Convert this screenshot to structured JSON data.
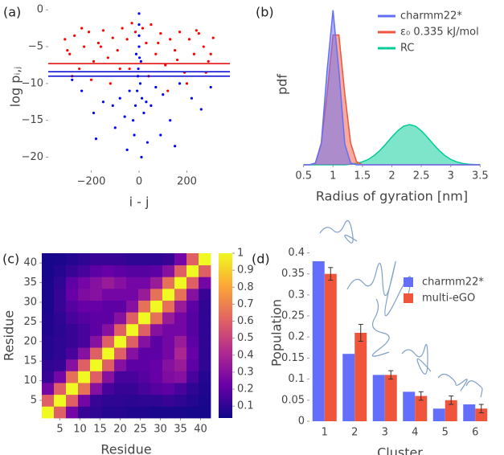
{
  "chart_data": [
    {
      "type": "scatter",
      "panel_label": "(a)",
      "x_label": "i - j",
      "y_label": "log pᵢ,ⱼ",
      "xlim": [
        -380,
        380
      ],
      "ylim": [
        -21.8,
        0.9
      ],
      "xticks": [
        {
          "value": -200,
          "label": "−200"
        },
        0,
        200
      ],
      "yticks": [
        0,
        {
          "value": -5,
          "label": "−5"
        },
        {
          "value": -10,
          "label": "−10"
        },
        {
          "value": -15,
          "label": "−15"
        },
        {
          "value": -20,
          "label": "−20"
        }
      ],
      "series": [
        {
          "color": "#ff0000",
          "x": [
            -310,
            -290,
            -270,
            -250,
            -230,
            -210,
            -190,
            -170,
            -150,
            -130,
            -110,
            -90,
            -70,
            -50,
            -30,
            -15,
            15,
            30,
            50,
            70,
            90,
            110,
            130,
            150,
            170,
            190,
            210,
            230,
            250,
            270,
            290,
            310,
            -280,
            -200,
            -120,
            -40,
            40,
            120,
            200,
            280,
            -240,
            -160,
            -80,
            80,
            160,
            240,
            -300,
            300
          ],
          "y": [
            -4,
            -6,
            -3.5,
            -8,
            -5,
            -3,
            -7,
            -4.5,
            -2.8,
            -6.5,
            -3.8,
            -5.5,
            -2.5,
            -4,
            -1.8,
            -3,
            -2.5,
            -4.5,
            -2,
            -6,
            -3.2,
            -7.5,
            -4,
            -5.5,
            -3,
            -8.5,
            -4,
            -6,
            -3.2,
            -5,
            -7,
            -3.8,
            -9,
            -9.5,
            -10,
            -8,
            -9,
            -11,
            -10,
            -8.5,
            -2.5,
            -5,
            -8,
            -4.5,
            -6.8,
            -2.8,
            -5.5,
            -6
          ]
        },
        {
          "color": "#0000ff",
          "x": [
            0,
            0,
            0,
            0,
            2,
            -3,
            5,
            -8,
            12,
            -15,
            20,
            -25,
            30,
            -40,
            50,
            -60,
            70,
            -80,
            100,
            -110,
            130,
            -150,
            170,
            -190,
            220,
            -240,
            260,
            -280,
            300,
            -20,
            35,
            -50,
            10,
            -100,
            90,
            150,
            -180,
            -5,
            8,
            -12
          ],
          "y": [
            -0.5,
            -2,
            -3.5,
            -5,
            -6.5,
            -8,
            -10,
            -11,
            -12,
            -13,
            -14,
            -15,
            -12.5,
            -11,
            -13,
            -14.5,
            -10.5,
            -12,
            -11.5,
            -13,
            -15,
            -12.5,
            -10,
            -14,
            -12,
            -11,
            -13.5,
            -9.5,
            -10.5,
            -17,
            -18,
            -19,
            -20,
            -16,
            -17,
            -18.5,
            -17.5,
            -9,
            -7,
            -6
          ]
        }
      ],
      "hlines": [
        {
          "y": -7.3,
          "color": "#e00000"
        },
        {
          "y": -8.4,
          "color": "#0000d0"
        },
        {
          "y": -9.0,
          "color": "#0000d0"
        }
      ]
    },
    {
      "type": "area",
      "panel_label": "(b)",
      "x_label": "Radius of gyration [nm]",
      "y_label": "pdf",
      "xlim": [
        0.45,
        3.55
      ],
      "ylim": [
        0,
        1.04
      ],
      "xticks": [
        0.5,
        1,
        1.5,
        2,
        2.5,
        3,
        3.5
      ],
      "legend": "upper right",
      "x": [
        0.5,
        0.6,
        0.7,
        0.8,
        0.9,
        1.0,
        1.1,
        1.2,
        1.3,
        1.4,
        1.5,
        1.6,
        1.7,
        1.8,
        1.9,
        2.0,
        2.1,
        2.2,
        2.3,
        2.4,
        2.5,
        2.6,
        2.7,
        2.8,
        2.9,
        3.0,
        3.1,
        3.2,
        3.3,
        3.4,
        3.5
      ],
      "series": [
        {
          "name": "charmm22*",
          "color": "#636efa",
          "values": [
            0,
            0,
            0.011,
            0.135,
            0.61,
            1,
            0.61,
            0.135,
            0.011,
            0,
            0,
            0,
            0,
            0,
            0,
            0,
            0,
            0,
            0,
            0,
            0,
            0,
            0,
            0,
            0,
            0,
            0,
            0,
            0,
            0,
            0
          ]
        },
        {
          "name": "ε₀ 0.335 kJ/mol",
          "color": "#ef553b",
          "values": [
            0,
            0,
            0.01,
            0.14,
            0.46,
            0.84,
            0.84,
            0.46,
            0.14,
            0.02,
            0,
            0,
            0,
            0,
            0,
            0,
            0,
            0,
            0,
            0,
            0,
            0,
            0,
            0,
            0,
            0,
            0,
            0,
            0,
            0,
            0
          ]
        },
        {
          "name": "RC",
          "color": "#00cc96",
          "values": [
            0,
            0,
            0,
            0,
            0,
            0,
            0,
            0,
            0.004,
            0.01,
            0.019,
            0.035,
            0.06,
            0.094,
            0.135,
            0.18,
            0.22,
            0.25,
            0.26,
            0.25,
            0.22,
            0.18,
            0.135,
            0.094,
            0.06,
            0.035,
            0.019,
            0.009,
            0.004,
            0.002,
            0
          ]
        }
      ]
    },
    {
      "type": "heatmap",
      "panel_label": "(c)",
      "x_label": "Residue",
      "y_label": "Residue",
      "xlim": [
        0.5,
        42.5
      ],
      "ylim": [
        0.5,
        42.5
      ],
      "xticks": [
        5,
        10,
        15,
        20,
        25,
        30,
        35,
        40
      ],
      "yticks": [
        5,
        10,
        15,
        20,
        25,
        30,
        35,
        40
      ],
      "x_edges": [
        0.5,
        3.5,
        6.5,
        9.5,
        12.5,
        15.5,
        18.5,
        21.5,
        24.5,
        27.5,
        30.5,
        33.5,
        36.5,
        39.5,
        42.5
      ],
      "y_edges": [
        0.5,
        3.5,
        6.5,
        9.5,
        12.5,
        15.5,
        18.5,
        21.5,
        24.5,
        27.5,
        30.5,
        33.5,
        36.5,
        39.5,
        42.5
      ],
      "zlim": [
        0.03,
        1
      ],
      "zticks": [
        0.1,
        0.2,
        0.3,
        0.4,
        0.5,
        0.6,
        0.7,
        0.8,
        0.9,
        1
      ],
      "colorscale": [
        "#0d0887",
        "#6a00a8",
        "#b12a90",
        "#e16462",
        "#fca636",
        "#f0f921"
      ],
      "z": [
        [
          1,
          0.6,
          0.25,
          0.12,
          0.1,
          0.08,
          0.08,
          0.07,
          0.07,
          0.06,
          0.06,
          0.06,
          0.05,
          0.05
        ],
        [
          0.6,
          1,
          0.6,
          0.25,
          0.12,
          0.1,
          0.1,
          0.09,
          0.1,
          0.1,
          0.12,
          0.1,
          0.08,
          0.06
        ],
        [
          0.25,
          0.6,
          1,
          0.65,
          0.3,
          0.15,
          0.12,
          0.12,
          0.15,
          0.18,
          0.2,
          0.15,
          0.1,
          0.07
        ],
        [
          0.12,
          0.25,
          0.65,
          1,
          0.6,
          0.3,
          0.15,
          0.15,
          0.18,
          0.22,
          0.28,
          0.3,
          0.15,
          0.08
        ],
        [
          0.1,
          0.12,
          0.3,
          0.6,
          1,
          0.6,
          0.3,
          0.2,
          0.2,
          0.22,
          0.3,
          0.35,
          0.2,
          0.1
        ],
        [
          0.08,
          0.1,
          0.15,
          0.3,
          0.6,
          1,
          0.6,
          0.3,
          0.2,
          0.2,
          0.25,
          0.4,
          0.22,
          0.1
        ],
        [
          0.08,
          0.1,
          0.12,
          0.15,
          0.3,
          0.6,
          1,
          0.6,
          0.3,
          0.2,
          0.25,
          0.35,
          0.2,
          0.1
        ],
        [
          0.07,
          0.09,
          0.12,
          0.15,
          0.2,
          0.3,
          0.6,
          1,
          0.6,
          0.3,
          0.25,
          0.25,
          0.18,
          0.1
        ],
        [
          0.07,
          0.1,
          0.15,
          0.18,
          0.2,
          0.2,
          0.3,
          0.6,
          1,
          0.65,
          0.35,
          0.25,
          0.18,
          0.1
        ],
        [
          0.06,
          0.12,
          0.18,
          0.22,
          0.22,
          0.2,
          0.2,
          0.3,
          0.65,
          1,
          0.65,
          0.35,
          0.2,
          0.1
        ],
        [
          0.06,
          0.12,
          0.22,
          0.28,
          0.3,
          0.25,
          0.25,
          0.25,
          0.35,
          0.65,
          1,
          0.65,
          0.3,
          0.12
        ],
        [
          0.06,
          0.1,
          0.2,
          0.25,
          0.3,
          0.35,
          0.3,
          0.25,
          0.25,
          0.35,
          0.65,
          1,
          0.6,
          0.25
        ],
        [
          0.05,
          0.08,
          0.12,
          0.15,
          0.2,
          0.22,
          0.2,
          0.18,
          0.18,
          0.2,
          0.3,
          0.6,
          1,
          0.6
        ],
        [
          0.05,
          0.06,
          0.08,
          0.1,
          0.12,
          0.12,
          0.12,
          0.1,
          0.1,
          0.1,
          0.12,
          0.25,
          0.6,
          1
        ]
      ]
    },
    {
      "type": "bar",
      "panel_label": "(d)",
      "x_label": "Cluster",
      "y_label": "Population",
      "categories": [
        "1",
        "2",
        "3",
        "4",
        "5",
        "6"
      ],
      "ylim": [
        0,
        0.42
      ],
      "yticks": [
        0,
        0.05,
        0.1,
        0.15,
        0.2,
        0.25,
        0.3,
        0.35,
        0.4
      ],
      "legend": "upper right",
      "series": [
        {
          "name": "charmm22*",
          "color": "#636efa",
          "values": [
            0.38,
            0.16,
            0.11,
            0.07,
            0.03,
            0.04
          ]
        },
        {
          "name": "multi-eGO",
          "color": "#ef553b",
          "values": [
            0.35,
            0.21,
            0.11,
            0.06,
            0.05,
            0.03
          ],
          "errors": [
            0.015,
            0.02,
            0.01,
            0.01,
            0.01,
            0.01
          ]
        }
      ]
    }
  ]
}
